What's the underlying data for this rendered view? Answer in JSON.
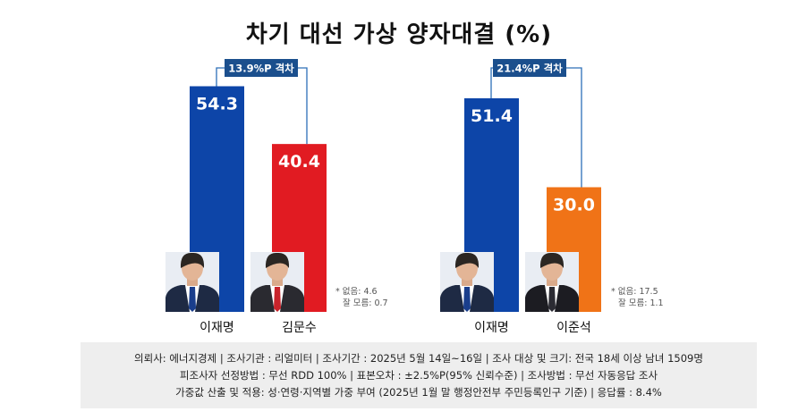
{
  "title": "차기 대선 가상 양자대결 (%)",
  "colors": {
    "blue": "#0d45a8",
    "red": "#e11b22",
    "orange": "#f07317",
    "gap_box": "#1b4f8d",
    "bracket": "#2d6fb8"
  },
  "chart_data": [
    {
      "type": "bar",
      "categories": [
        "이재명",
        "김문수"
      ],
      "values": [
        54.3,
        40.4
      ],
      "colors": [
        "#0d45a8",
        "#e11b22"
      ],
      "gap_label": "13.9%P 격차",
      "notes": [
        "* 없음: 4.6",
        "잘 모름: 0.7"
      ]
    },
    {
      "type": "bar",
      "categories": [
        "이재명",
        "이준석"
      ],
      "values": [
        51.4,
        30.0
      ],
      "colors": [
        "#0d45a8",
        "#f07317"
      ],
      "gap_label": "21.4%P 격차",
      "notes": [
        "* 없음: 17.5",
        "잘 모름: 1.1"
      ]
    }
  ],
  "footer": {
    "line1": "의뢰사: 에너지경제 | 조사기관 : 리얼미터  |  조사기간 : 2025년 5월 14일~16일 | 조사 대상 및 크기: 전국 18세 이상 남녀 1509명",
    "line2": "피조사자 선정방법 : 무선 RDD 100% | 표본오차 : ±2.5%P(95% 신뢰수준) | 조사방법 : 무선 자동응답 조사",
    "line3": "가중값 산출 및 적용: 성·연령·지역별 가중 부여 (2025년 1월 말 행정안전부 주민등록인구 기준) | 응답률 : 8.4%"
  }
}
